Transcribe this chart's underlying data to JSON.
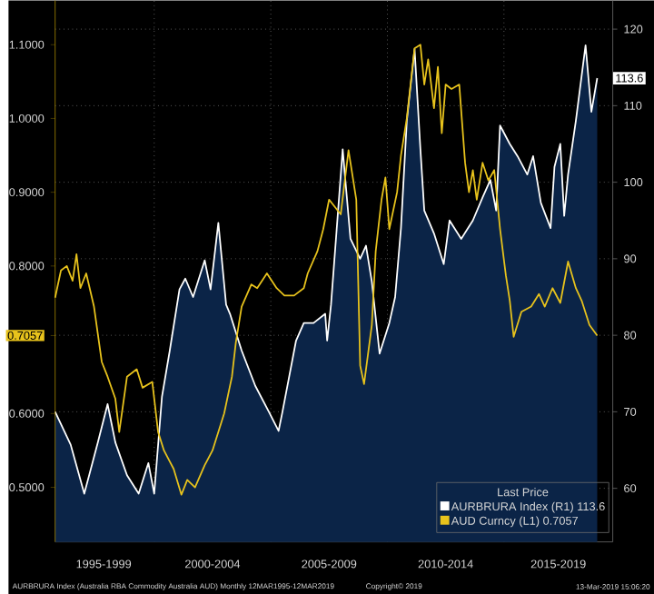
{
  "chart_data": {
    "type": "line",
    "xlim": [
      "1995-10",
      "2019-09"
    ],
    "xticks": [
      {
        "value": "1997-11",
        "label": "1995-1999"
      },
      {
        "value": "2000-01",
        "label": null
      },
      {
        "value": "2002-07",
        "label": "2000-2004"
      },
      {
        "value": "2005-01",
        "label": null
      },
      {
        "value": "2007-07",
        "label": "2005-2009"
      },
      {
        "value": "2010-01",
        "label": null
      },
      {
        "value": "2012-07",
        "label": "2010-2014"
      },
      {
        "value": "2015-01",
        "label": null
      },
      {
        "value": "2017-05",
        "label": "2015-2019"
      }
    ],
    "ylim": [
      0.426,
      1.16
    ],
    "yticks": [
      {
        "value": 0.5,
        "label": "0.5000"
      },
      {
        "value": 0.6,
        "label": "0.6000"
      },
      {
        "value": 0.7057,
        "label": "0.7057"
      },
      {
        "value": 0.8,
        "label": "0.8000"
      },
      {
        "value": 0.9,
        "label": "0.9000"
      },
      {
        "value": 1.0,
        "label": "1.0000"
      },
      {
        "value": 1.1,
        "label": "1.1000"
      }
    ],
    "y2lim": [
      53,
      123.75
    ],
    "y2ticks": [
      60,
      70,
      80,
      90,
      100,
      110,
      120
    ],
    "grid": true,
    "legend": "bottom right",
    "legend_title": "Last Price",
    "series": [
      {
        "name": "AURBRURA Index  (R1)  113.6",
        "type": "area",
        "axis": "y2",
        "color": "#ffffff",
        "x": [
          "1995-10",
          "1996-06",
          "1997-01",
          "1997-08",
          "1998-01",
          "1998-05",
          "1998-11",
          "1999-05",
          "1999-10",
          "2000-01",
          "2000-05",
          "2000-09",
          "2001-02",
          "2001-05",
          "2001-09",
          "2002-03",
          "2002-06",
          "2002-10",
          "2003-02",
          "2003-04",
          "2003-10",
          "2004-05",
          "2004-12",
          "2005-05",
          "2005-07",
          "2006-02",
          "2006-06",
          "2006-11",
          "2007-05",
          "2007-06",
          "2007-08",
          "2008-02",
          "2008-06",
          "2008-11",
          "2009-02",
          "2009-05",
          "2009-09",
          "2010-02",
          "2010-05",
          "2010-08",
          "2010-11",
          "2011-03",
          "2011-06",
          "2011-08",
          "2012-01",
          "2012-06",
          "2012-09",
          "2013-03",
          "2013-09",
          "2014-02",
          "2014-06",
          "2014-09",
          "2014-11",
          "2015-04",
          "2015-08",
          "2016-01",
          "2016-04",
          "2016-08",
          "2017-01",
          "2017-03",
          "2017-06",
          "2017-08",
          "2017-10",
          "2018-02",
          "2018-07",
          "2018-10",
          "2019-01"
        ],
        "values": [
          70,
          65.7,
          59.3,
          66,
          71,
          66,
          61.7,
          59.3,
          63.3,
          59.3,
          72,
          78,
          86,
          87.4,
          85,
          89.8,
          86,
          94.7,
          84,
          82.8,
          78,
          73.4,
          70,
          67.5,
          70,
          79.3,
          81.6,
          81.6,
          82.8,
          79.3,
          84,
          104.3,
          92.6,
          90,
          91.7,
          87,
          77.6,
          81.6,
          85,
          94,
          108,
          117.4,
          104.3,
          96.3,
          93.3,
          89.3,
          95,
          92.6,
          95,
          98,
          100.3,
          96.3,
          107.4,
          105,
          103.4,
          101,
          103.4,
          97.3,
          94,
          102,
          105,
          95.6,
          101,
          108,
          117.9,
          109.2,
          113.6
        ],
        "value_labels": [
          null,
          null,
          null,
          null,
          null,
          null,
          null,
          null,
          null,
          null,
          null,
          null,
          null,
          null,
          null,
          null,
          null,
          null,
          null,
          null,
          null,
          null,
          null,
          null,
          null,
          null,
          null,
          null,
          null,
          null,
          null,
          null,
          null,
          null,
          null,
          null,
          null,
          null,
          null,
          null,
          null,
          null,
          null,
          null,
          null,
          null,
          null,
          null,
          null,
          null,
          null,
          null,
          null,
          null,
          null,
          null,
          null,
          null,
          null,
          null,
          null,
          null,
          null,
          null,
          null,
          null,
          "113.6"
        ]
      },
      {
        "name": "AUD Curncy  (L1)  0.7057",
        "axis": "y",
        "color": "#e8c31c",
        "x": [
          "1995-10",
          "1996-01",
          "1996-04",
          "1996-07",
          "1996-09",
          "1996-11",
          "1997-02",
          "1997-06",
          "1997-10",
          "1998-01",
          "1998-05",
          "1998-07",
          "1998-11",
          "1999-04",
          "1999-07",
          "1999-12",
          "2000-03",
          "2000-06",
          "2000-11",
          "2001-03",
          "2001-06",
          "2001-10",
          "2002-03",
          "2002-07",
          "2003-01",
          "2003-05",
          "2003-07",
          "2003-10",
          "2004-03",
          "2004-06",
          "2004-11",
          "2005-04",
          "2005-08",
          "2006-01",
          "2006-06",
          "2006-08",
          "2007-01",
          "2007-04",
          "2007-07",
          "2008-01",
          "2008-05",
          "2008-09",
          "2008-11",
          "2009-01",
          "2009-05",
          "2009-07",
          "2009-10",
          "2009-12",
          "2010-02",
          "2010-06",
          "2010-08",
          "2010-11",
          "2011-03",
          "2011-06",
          "2011-08",
          "2011-10",
          "2012-01",
          "2012-03",
          "2012-05",
          "2012-07",
          "2012-10",
          "2013-02",
          "2013-05",
          "2013-07",
          "2013-09",
          "2013-11",
          "2014-02",
          "2014-05",
          "2014-08",
          "2014-11",
          "2015-02",
          "2015-04",
          "2015-06",
          "2015-10",
          "2016-03",
          "2016-07",
          "2016-10",
          "2017-02",
          "2017-06",
          "2017-10",
          "2018-02",
          "2018-05",
          "2018-09",
          "2019-01"
        ],
        "values": [
          0.757,
          0.794,
          0.8,
          0.78,
          0.816,
          0.77,
          0.79,
          0.745,
          0.67,
          0.65,
          0.62,
          0.575,
          0.65,
          0.66,
          0.635,
          0.643,
          0.575,
          0.55,
          0.525,
          0.49,
          0.51,
          0.5,
          0.53,
          0.55,
          0.6,
          0.65,
          0.696,
          0.745,
          0.775,
          0.77,
          0.79,
          0.77,
          0.76,
          0.76,
          0.77,
          0.79,
          0.82,
          0.85,
          0.89,
          0.87,
          0.957,
          0.89,
          0.665,
          0.64,
          0.72,
          0.82,
          0.89,
          0.92,
          0.85,
          0.9,
          0.95,
          1.0,
          1.095,
          1.1,
          1.046,
          1.08,
          1.014,
          1.07,
          0.98,
          1.046,
          1.04,
          1.046,
          0.94,
          0.9,
          0.93,
          0.89,
          0.94,
          0.916,
          0.93,
          0.85,
          0.787,
          0.753,
          0.704,
          0.738,
          0.745,
          0.762,
          0.745,
          0.77,
          0.75,
          0.806,
          0.77,
          0.753,
          0.72,
          0.7057
        ],
        "value_labels": [
          null,
          null,
          null,
          null,
          null,
          null,
          null,
          null,
          null,
          null,
          null,
          null,
          null,
          null,
          null,
          null,
          null,
          null,
          null,
          null,
          null,
          null,
          null,
          null,
          null,
          null,
          null,
          null,
          null,
          null,
          null,
          null,
          null,
          null,
          null,
          null,
          null,
          null,
          null,
          null,
          null,
          null,
          null,
          null,
          null,
          null,
          null,
          null,
          null,
          null,
          null,
          null,
          null,
          null,
          null,
          null,
          null,
          null,
          null,
          null,
          null,
          null,
          null,
          null,
          null,
          null,
          null,
          null,
          null,
          null,
          null,
          null,
          null,
          null,
          null,
          null,
          null,
          null,
          null,
          null,
          null,
          null,
          null,
          null
        ]
      }
    ],
    "annotations": [
      "AURBRURA Index (Australia RBA Commodity Australia AUD)  Monthly 12MAR1995-12MAR2019",
      "Copyright© 2019",
      "13-Mar-2019 15:06:20"
    ]
  }
}
